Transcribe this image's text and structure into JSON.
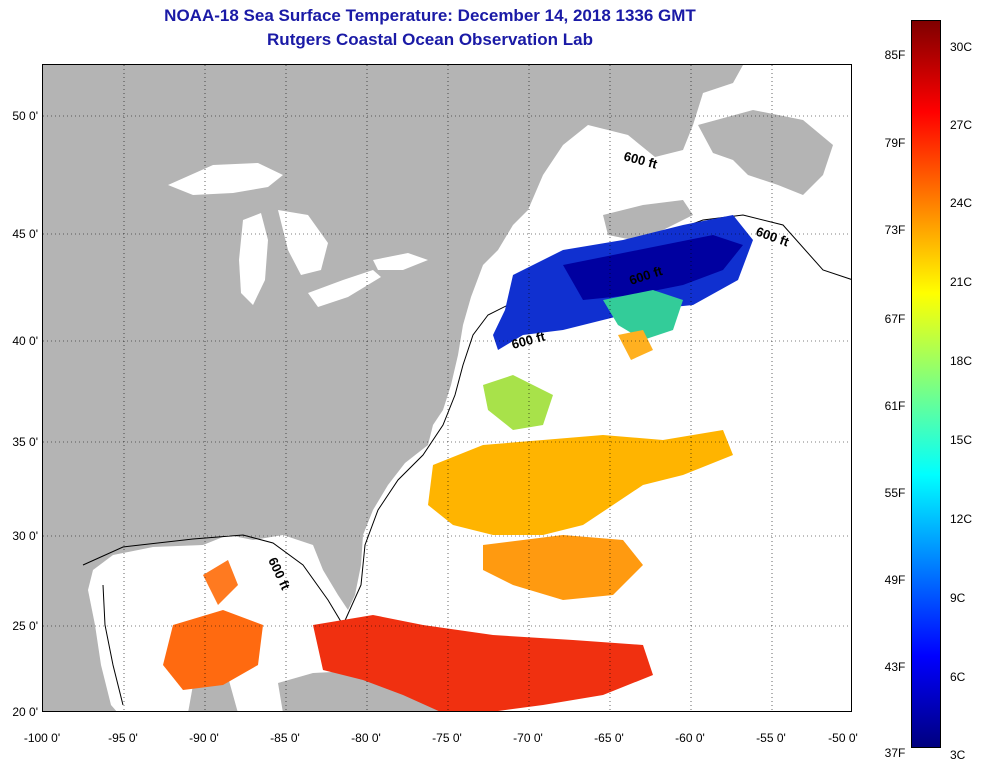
{
  "title": "NOAA-18 Sea Surface Temperature:  December 14, 2018 1336 GMT",
  "subtitle": "Rutgers Coastal Ocean Observation Lab",
  "map": {
    "lat_labels": [
      "50 0'",
      "45 0'",
      "40 0'",
      "35 0'",
      "30 0'",
      "25 0'",
      "20 0'"
    ],
    "lon_labels": [
      "-100 0'",
      "-95 0'",
      "-90 0'",
      "-85 0'",
      "-80 0'",
      "-75 0'",
      "-70 0'",
      "-65 0'",
      "-60 0'",
      "-55 0'",
      "-50 0'"
    ],
    "contour_label": "600 ft",
    "land_color": "#b4b4b4",
    "water_color": "#ffffff",
    "grid": "dotted"
  },
  "colorbar": {
    "fahrenheit_labels": [
      "85F",
      "79F",
      "73F",
      "67F",
      "61F",
      "55F",
      "49F",
      "43F",
      "37F"
    ],
    "celsius_labels": [
      "30C",
      "27C",
      "24C",
      "21C",
      "18C",
      "15C",
      "12C",
      "9C",
      "6C",
      "3C"
    ],
    "colors": [
      "#7f0000",
      "#ff0000",
      "#ff7f00",
      "#ffff00",
      "#7fff7f",
      "#00ffff",
      "#007fff",
      "#0000ff",
      "#00007f"
    ]
  }
}
